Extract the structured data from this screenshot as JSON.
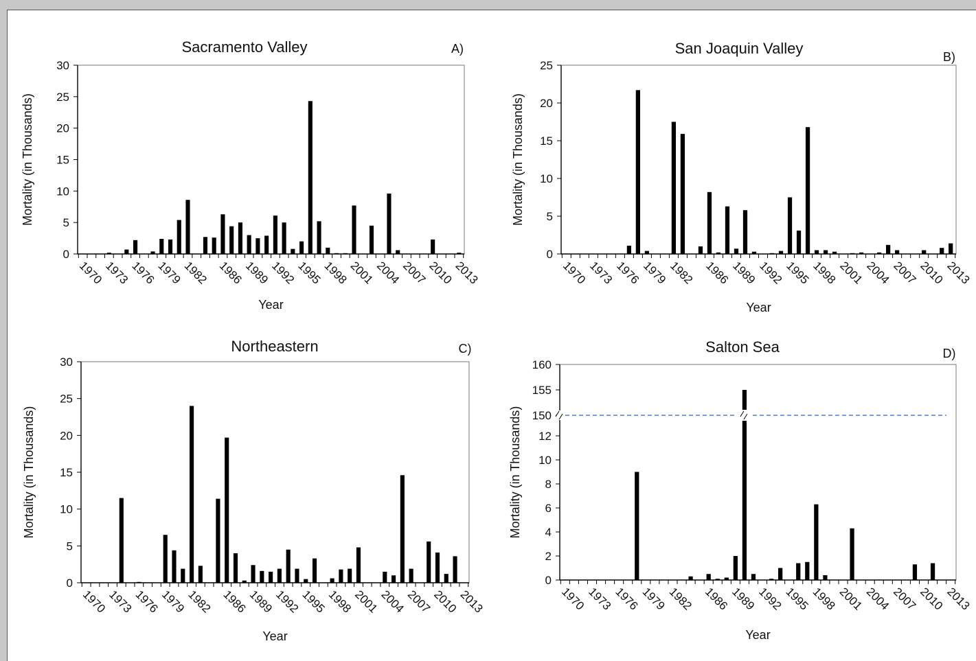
{
  "page": {
    "background": "#ffffff",
    "chrome_color": "#c8c8c8"
  },
  "chart_data": [
    {
      "type": "bar",
      "title": "Sacramento Valley",
      "panel_label": "A)",
      "xlabel": "Year",
      "ylabel": "Mortality (in Thousands)",
      "ylim": [
        0,
        30
      ],
      "yticks": [
        0,
        5,
        10,
        15,
        20,
        25,
        30
      ],
      "x_tick_labels": [
        "1970",
        "1973",
        "1976",
        "1979",
        "1982",
        "1986",
        "1989",
        "1992",
        "1995",
        "1998",
        "2001",
        "2004",
        "2007",
        "2010",
        "2013"
      ],
      "categories": [
        "1970",
        "1971",
        "1972",
        "1973",
        "1974",
        "1975",
        "1976",
        "1977",
        "1978",
        "1979",
        "1980",
        "1981",
        "1982",
        "1983",
        "1984",
        "1985",
        "1986",
        "1987",
        "1988",
        "1989",
        "1990",
        "1991",
        "1992",
        "1993",
        "1994",
        "1995",
        "1996",
        "1997",
        "1998",
        "1999",
        "2000",
        "2001",
        "2002",
        "2003",
        "2004",
        "2005",
        "2006",
        "2007",
        "2008",
        "2009",
        "2010",
        "2011",
        "2012",
        "2013"
      ],
      "values": [
        0,
        0,
        0,
        0.2,
        0,
        0.7,
        2.2,
        0,
        0.4,
        2.4,
        2.3,
        5.4,
        8.6,
        0,
        2.7,
        2.6,
        6.3,
        4.4,
        5.0,
        3.0,
        2.5,
        2.9,
        6.1,
        5.0,
        0.8,
        2.0,
        24.3,
        5.2,
        1.0,
        0.1,
        0.1,
        7.7,
        0,
        4.5,
        0,
        9.6,
        0.6,
        0,
        0,
        0,
        2.3,
        0,
        0,
        0.2
      ],
      "bar_color": "#000000",
      "grid": false
    },
    {
      "type": "bar",
      "title": "San Joaquin Valley",
      "panel_label": "B)",
      "xlabel": "Year",
      "ylabel": "Mortality (in Thousands)",
      "ylim": [
        0,
        25
      ],
      "yticks": [
        0,
        5,
        10,
        15,
        20,
        25
      ],
      "x_tick_labels": [
        "1970",
        "1973",
        "1976",
        "1979",
        "1982",
        "1986",
        "1989",
        "1992",
        "1995",
        "1998",
        "2001",
        "2004",
        "2007",
        "2010",
        "2013"
      ],
      "categories": [
        "1970",
        "1971",
        "1972",
        "1973",
        "1974",
        "1975",
        "1976",
        "1977",
        "1978",
        "1979",
        "1980",
        "1981",
        "1982",
        "1983",
        "1984",
        "1985",
        "1986",
        "1987",
        "1988",
        "1989",
        "1990",
        "1991",
        "1992",
        "1993",
        "1994",
        "1995",
        "1996",
        "1997",
        "1998",
        "1999",
        "2000",
        "2001",
        "2002",
        "2003",
        "2004",
        "2005",
        "2006",
        "2007",
        "2008",
        "2009",
        "2010",
        "2011",
        "2012",
        "2013"
      ],
      "values": [
        0,
        0,
        0,
        0,
        0,
        0,
        0,
        1.1,
        21.7,
        0.4,
        0,
        0,
        17.5,
        15.9,
        0,
        1.0,
        8.2,
        0.2,
        6.3,
        0.7,
        5.8,
        0.3,
        0,
        0.1,
        0.4,
        7.5,
        3.1,
        16.8,
        0.5,
        0.5,
        0.3,
        0,
        0.1,
        0.2,
        0,
        0.2,
        1.2,
        0.5,
        0,
        0,
        0.5,
        0,
        0.8,
        1.4
      ],
      "bar_color": "#000000",
      "grid": false
    },
    {
      "type": "bar",
      "title": "Northeastern",
      "panel_label": "C)",
      "xlabel": "Year",
      "ylabel": "Mortality (in Thousands)",
      "ylim": [
        0,
        30
      ],
      "yticks": [
        0,
        5,
        10,
        15,
        20,
        25,
        30
      ],
      "x_tick_labels": [
        "1970",
        "1973",
        "1976",
        "1979",
        "1982",
        "1986",
        "1989",
        "1992",
        "1995",
        "1998",
        "2001",
        "2004",
        "2007",
        "2010",
        "2013"
      ],
      "categories": [
        "1970",
        "1971",
        "1972",
        "1973",
        "1974",
        "1975",
        "1976",
        "1977",
        "1978",
        "1979",
        "1980",
        "1981",
        "1982",
        "1983",
        "1984",
        "1985",
        "1986",
        "1987",
        "1988",
        "1989",
        "1990",
        "1991",
        "1992",
        "1993",
        "1994",
        "1995",
        "1996",
        "1997",
        "1998",
        "1999",
        "2000",
        "2001",
        "2002",
        "2003",
        "2004",
        "2005",
        "2006",
        "2007",
        "2008",
        "2009",
        "2010",
        "2011",
        "2012",
        "2013"
      ],
      "values": [
        0,
        0,
        0,
        0,
        11.5,
        0,
        0.1,
        0,
        0,
        6.5,
        4.4,
        1.9,
        24.0,
        2.3,
        0,
        11.4,
        19.7,
        4.0,
        0.3,
        2.4,
        1.6,
        1.5,
        1.9,
        4.5,
        1.9,
        0.5,
        3.3,
        0,
        0.6,
        1.8,
        1.9,
        4.8,
        0,
        0,
        1.5,
        1.0,
        14.6,
        1.9,
        0,
        5.6,
        4.1,
        1.2,
        3.6,
        0
      ],
      "bar_color": "#000000",
      "grid": false
    },
    {
      "type": "bar",
      "title": "Salton Sea",
      "panel_label": "D)",
      "xlabel": "Year",
      "ylabel": "Mortality (in Thousands)",
      "ylim": [
        0,
        160
      ],
      "axis_break": {
        "lower_range": [
          0,
          12
        ],
        "upper_range": [
          150,
          160
        ]
      },
      "ytick_labels": [
        "0",
        "2",
        "4",
        "6",
        "8",
        "10",
        "12",
        "150",
        "155",
        "160"
      ],
      "x_tick_labels": [
        "1970",
        "1973",
        "1976",
        "1979",
        "1982",
        "1986",
        "1989",
        "1992",
        "1995",
        "1998",
        "2001",
        "2004",
        "2007",
        "2010",
        "2013"
      ],
      "categories": [
        "1970",
        "1971",
        "1972",
        "1973",
        "1974",
        "1975",
        "1976",
        "1977",
        "1978",
        "1979",
        "1980",
        "1981",
        "1982",
        "1983",
        "1984",
        "1985",
        "1986",
        "1987",
        "1988",
        "1989",
        "1990",
        "1991",
        "1992",
        "1993",
        "1994",
        "1995",
        "1996",
        "1997",
        "1998",
        "1999",
        "2000",
        "2001",
        "2002",
        "2003",
        "2004",
        "2005",
        "2006",
        "2007",
        "2008",
        "2009",
        "2010",
        "2011",
        "2012",
        "2013"
      ],
      "values": [
        0,
        0,
        0,
        0,
        0,
        0,
        0,
        0,
        9.0,
        0,
        0,
        0,
        0,
        0,
        0.3,
        0,
        0.5,
        0.1,
        0.2,
        2.0,
        155,
        0.5,
        0,
        0.1,
        1.0,
        0,
        1.4,
        1.5,
        6.3,
        0.4,
        0,
        0,
        4.3,
        0,
        0,
        0,
        0,
        0,
        0,
        1.3,
        0,
        1.4,
        0,
        0
      ],
      "bar_color": "#000000",
      "break_line_color": "#4a7fd4",
      "grid": false
    }
  ]
}
